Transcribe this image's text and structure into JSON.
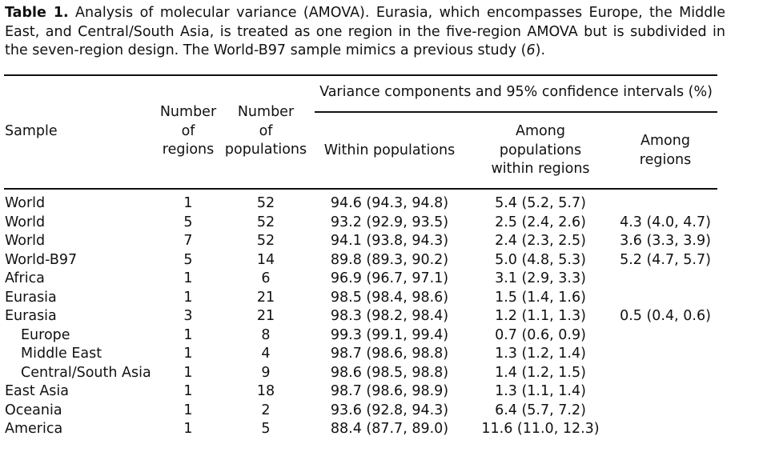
{
  "caption": {
    "label": "Table 1.",
    "text": " Analysis of molecular variance (AMOVA). Eurasia, which encompasses Europe, the Middle East, and Central/South Asia, is treated as one region in the five-region AMOVA but is subdivided in the seven-region design. The World-B97 sample mimics a previous study (",
    "ref": "6",
    "end": ")."
  },
  "header": {
    "sample": "Sample",
    "num_regions": "Number\nof\nregions",
    "num_populations": "Number\nof\npopulations",
    "variance_group": "Variance components and 95% confidence intervals (%)",
    "within_populations": "Within populations",
    "among_pop_within_regions": "Among\npopulations\nwithin regions",
    "among_regions": "Among\nregions"
  },
  "rows": [
    {
      "sample": "World",
      "indent": false,
      "regions": "1",
      "populations": "52",
      "within": "94.6 (94.3, 94.8)",
      "among_pop": "5.4 (5.2, 5.7)",
      "among_reg": ""
    },
    {
      "sample": "World",
      "indent": false,
      "regions": "5",
      "populations": "52",
      "within": "93.2 (92.9, 93.5)",
      "among_pop": "2.5 (2.4, 2.6)",
      "among_reg": "4.3 (4.0, 4.7)"
    },
    {
      "sample": "World",
      "indent": false,
      "regions": "7",
      "populations": "52",
      "within": "94.1 (93.8, 94.3)",
      "among_pop": "2.4 (2.3, 2.5)",
      "among_reg": "3.6 (3.3, 3.9)"
    },
    {
      "sample": "World-B97",
      "indent": false,
      "regions": "5",
      "populations": "14",
      "within": "89.8 (89.3, 90.2)",
      "among_pop": "5.0 (4.8, 5.3)",
      "among_reg": "5.2 (4.7, 5.7)"
    },
    {
      "sample": "Africa",
      "indent": false,
      "regions": "1",
      "populations": "6",
      "within": "96.9 (96.7, 97.1)",
      "among_pop": "3.1 (2.9, 3.3)",
      "among_reg": ""
    },
    {
      "sample": "Eurasia",
      "indent": false,
      "regions": "1",
      "populations": "21",
      "within": "98.5 (98.4, 98.6)",
      "among_pop": "1.5 (1.4, 1.6)",
      "among_reg": ""
    },
    {
      "sample": "Eurasia",
      "indent": false,
      "regions": "3",
      "populations": "21",
      "within": "98.3 (98.2, 98.4)",
      "among_pop": "1.2 (1.1, 1.3)",
      "among_reg": "0.5 (0.4, 0.6)"
    },
    {
      "sample": "Europe",
      "indent": true,
      "regions": "1",
      "populations": "8",
      "within": "99.3 (99.1, 99.4)",
      "among_pop": "0.7 (0.6, 0.9)",
      "among_reg": ""
    },
    {
      "sample": "Middle East",
      "indent": true,
      "regions": "1",
      "populations": "4",
      "within": "98.7 (98.6, 98.8)",
      "among_pop": "1.3 (1.2, 1.4)",
      "among_reg": ""
    },
    {
      "sample": "Central/South Asia",
      "indent": true,
      "regions": "1",
      "populations": "9",
      "within": "98.6 (98.5, 98.8)",
      "among_pop": "1.4 (1.2, 1.5)",
      "among_reg": ""
    },
    {
      "sample": "East Asia",
      "indent": false,
      "regions": "1",
      "populations": "18",
      "within": "98.7 (98.6, 98.9)",
      "among_pop": "1.3 (1.1, 1.4)",
      "among_reg": ""
    },
    {
      "sample": "Oceania",
      "indent": false,
      "regions": "1",
      "populations": "2",
      "within": "93.6 (92.8, 94.3)",
      "among_pop": "6.4 (5.7, 7.2)",
      "among_reg": ""
    },
    {
      "sample": "America",
      "indent": false,
      "regions": "1",
      "populations": "5",
      "within": "88.4 (87.7, 89.0)",
      "among_pop": "11.6 (11.0, 12.3)",
      "among_reg": ""
    }
  ]
}
